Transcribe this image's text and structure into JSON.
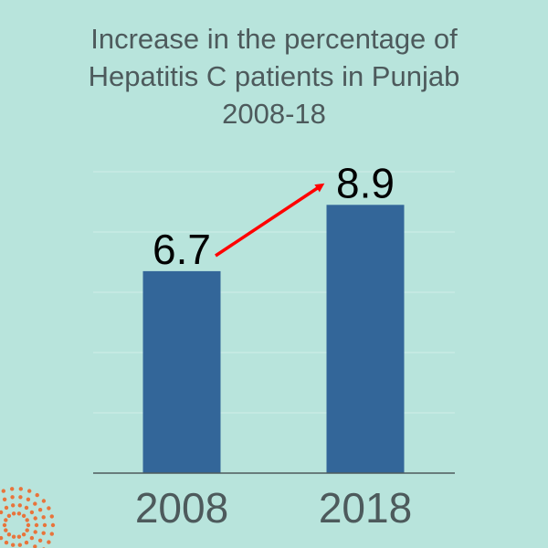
{
  "chart_data": {
    "type": "bar",
    "title_lines": [
      "Increase in the percentage of",
      "Hepatitis C patients in Punjab",
      "2008-18"
    ],
    "categories": [
      "2008",
      "2018"
    ],
    "values": [
      6.7,
      8.9
    ],
    "value_labels": [
      "6.7",
      "8.9"
    ],
    "xlabel": "",
    "ylabel": "",
    "ylim": [
      0,
      10
    ],
    "grid": true,
    "legend": "none",
    "annotations": [
      {
        "type": "arrow",
        "from_category": "2008",
        "to_category": "2018",
        "color": "#ff0000"
      }
    ]
  },
  "colors": {
    "background": "#b8e4dc",
    "bar": "#336699",
    "arrow": "#ff0000",
    "grid": "#cfeee8",
    "axis": "#4d5a5c",
    "decoration": "#e8743b"
  },
  "decoration": {
    "icon": "sunburst-icon"
  }
}
